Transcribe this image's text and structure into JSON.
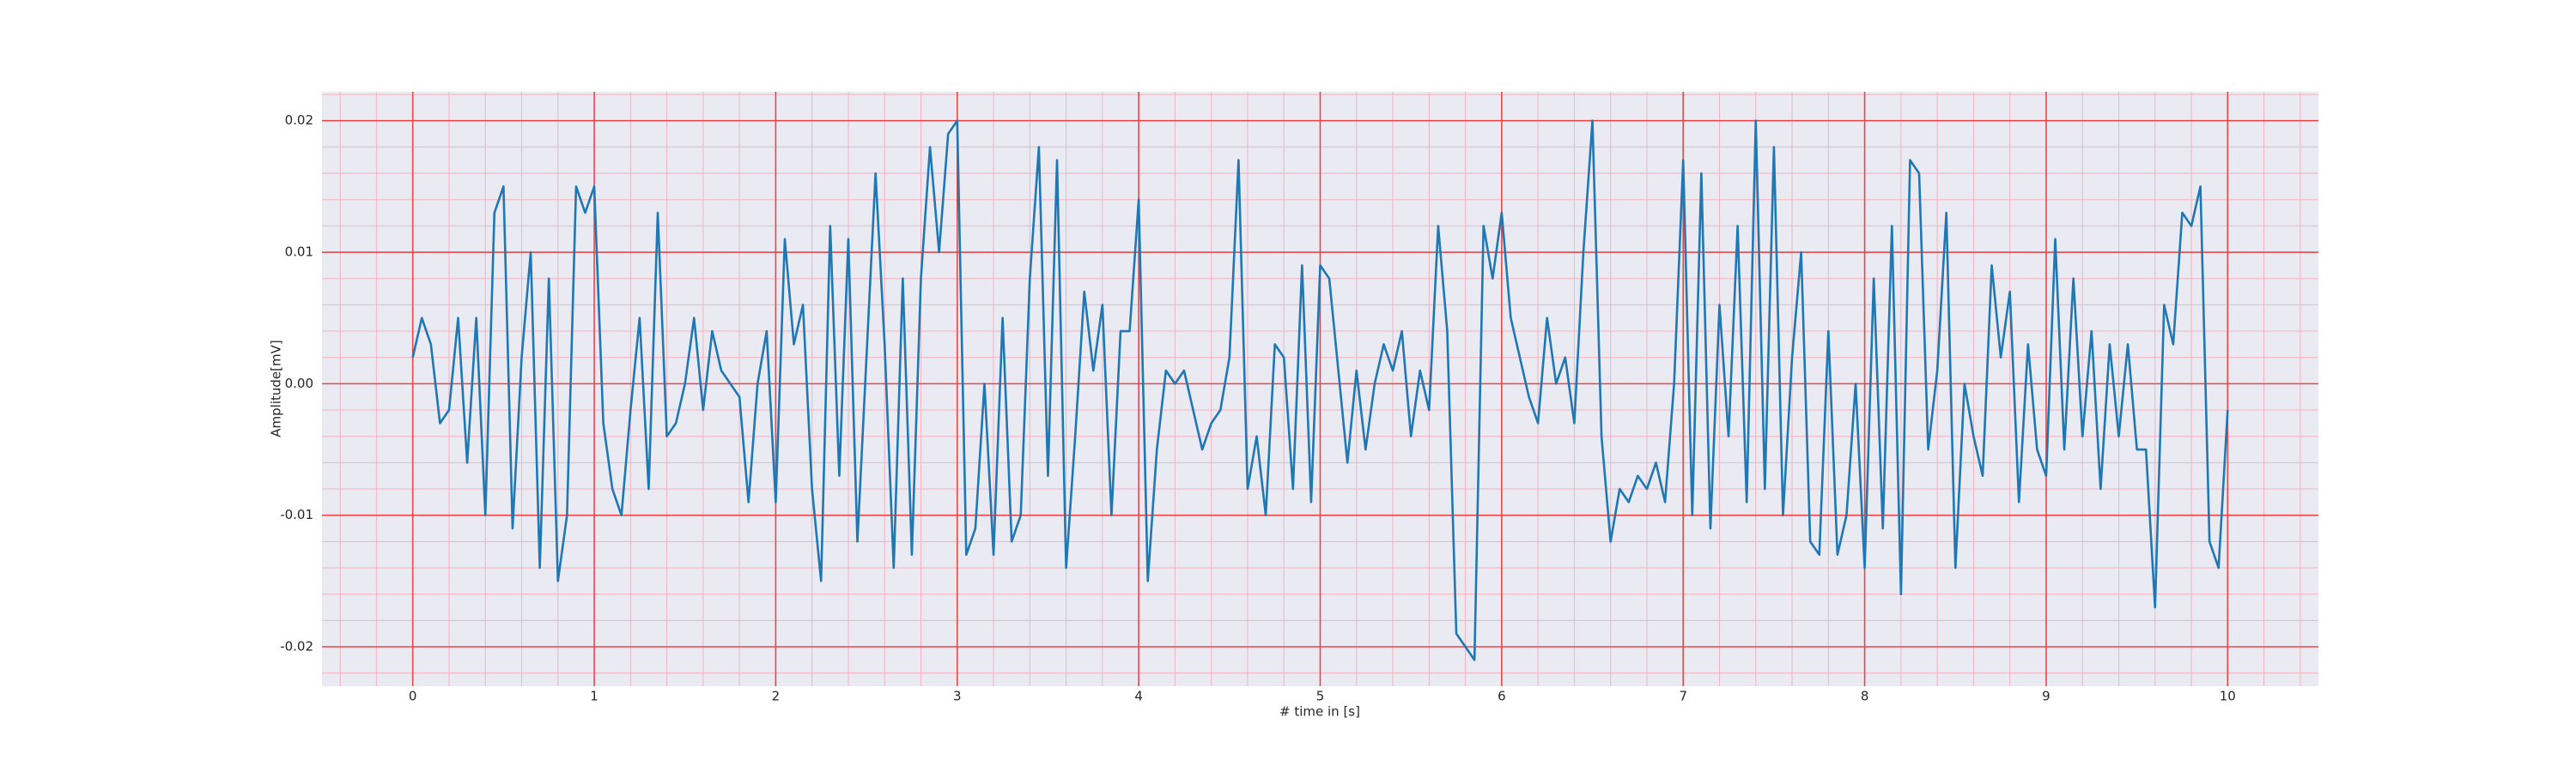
{
  "chart_data": {
    "type": "line",
    "xlabel": "# time in [s]",
    "ylabel": "Amplitude[mV]",
    "xlim": [
      -0.5,
      10.5
    ],
    "ylim": [
      -0.023,
      0.0222
    ],
    "xticks": [
      0,
      1,
      2,
      3,
      4,
      5,
      6,
      7,
      8,
      9,
      10
    ],
    "yticks": [
      -0.02,
      -0.01,
      {
        "value": 0,
        "label": "0.00"
      },
      0.01,
      0.02
    ],
    "grid": true,
    "grid_color": "#e8474a",
    "minor_grid": {
      "x_step": 0.2,
      "y_step": 0.002,
      "color": "#f3b3c0"
    },
    "background": "#eaeaf2",
    "x": [
      0,
      0.05,
      0.1,
      0.15,
      0.2,
      0.25,
      0.3,
      0.35,
      0.4,
      0.45,
      0.5,
      0.55,
      0.6,
      0.65,
      0.7,
      0.75,
      0.8,
      0.85,
      0.9,
      0.95,
      1,
      1.05,
      1.1,
      1.15,
      1.2,
      1.25,
      1.3,
      1.35,
      1.4,
      1.45,
      1.5,
      1.55,
      1.6,
      1.65,
      1.7,
      1.75,
      1.8,
      1.85,
      1.9,
      1.95,
      2,
      2.05,
      2.1,
      2.15,
      2.2,
      2.25,
      2.3,
      2.35,
      2.4,
      2.45,
      2.5,
      2.55,
      2.6,
      2.65,
      2.7,
      2.75,
      2.8,
      2.85,
      2.9,
      2.95,
      3,
      3.05,
      3.1,
      3.15,
      3.2,
      3.25,
      3.3,
      3.35,
      3.4,
      3.45,
      3.5,
      3.55,
      3.6,
      3.65,
      3.7,
      3.75,
      3.8,
      3.85,
      3.9,
      3.95,
      4,
      4.05,
      4.1,
      4.15,
      4.2,
      4.25,
      4.3,
      4.35,
      4.4,
      4.45,
      4.5,
      4.55,
      4.6,
      4.65,
      4.7,
      4.75,
      4.8,
      4.85,
      4.9,
      4.95,
      5,
      5.05,
      5.1,
      5.15,
      5.2,
      5.25,
      5.3,
      5.35,
      5.4,
      5.45,
      5.5,
      5.55,
      5.6,
      5.65,
      5.7,
      5.75,
      5.8,
      5.85,
      5.9,
      5.95,
      6,
      6.05,
      6.1,
      6.15,
      6.2,
      6.25,
      6.3,
      6.35,
      6.4,
      6.45,
      6.5,
      6.55,
      6.6,
      6.65,
      6.7,
      6.75,
      6.8,
      6.85,
      6.9,
      6.95,
      7,
      7.05,
      7.1,
      7.15,
      7.2,
      7.25,
      7.3,
      7.35,
      7.4,
      7.45,
      7.5,
      7.55,
      7.6,
      7.65,
      7.7,
      7.75,
      7.8,
      7.85,
      7.9,
      7.95,
      8,
      8.05,
      8.1,
      8.15,
      8.2,
      8.25,
      8.3,
      8.35,
      8.4,
      8.45,
      8.5,
      8.55,
      8.6,
      8.65,
      8.7,
      8.75,
      8.8,
      8.85,
      8.9,
      8.95,
      9,
      9.05,
      9.1,
      9.15,
      9.2,
      9.25,
      9.3,
      9.35,
      9.4,
      9.45,
      9.5,
      9.55,
      9.6,
      9.65,
      9.7,
      9.75,
      9.8,
      9.85,
      9.9,
      9.95,
      10
    ],
    "series": [
      {
        "color": "#1f77b4",
        "values": [
          0.002,
          0.005,
          0.003,
          -0.003,
          -0.002,
          0.005,
          -0.006,
          0.005,
          -0.01,
          0.013,
          0.015,
          -0.011,
          0.002,
          0.01,
          -0.014,
          0.008,
          -0.015,
          -0.01,
          0.015,
          0.013,
          0.015,
          -0.003,
          -0.008,
          -0.01,
          -0.002,
          0.005,
          -0.008,
          0.013,
          -0.004,
          -0.003,
          0.0,
          0.005,
          -0.002,
          0.004,
          0.001,
          0.0,
          -0.001,
          -0.009,
          0.0,
          0.004,
          -0.009,
          0.011,
          0.003,
          0.006,
          -0.008,
          -0.015,
          0.012,
          -0.007,
          0.011,
          -0.012,
          0.002,
          0.016,
          0.003,
          -0.014,
          0.008,
          -0.013,
          0.008,
          0.018,
          0.01,
          0.019,
          0.02,
          -0.013,
          -0.011,
          0.0,
          -0.013,
          0.005,
          -0.012,
          -0.01,
          0.008,
          0.018,
          -0.007,
          0.017,
          -0.014,
          -0.004,
          0.007,
          0.001,
          0.006,
          -0.01,
          0.004,
          0.004,
          0.014,
          -0.015,
          -0.005,
          0.001,
          0.0,
          0.001,
          -0.002,
          -0.005,
          -0.003,
          -0.002,
          0.002,
          0.017,
          -0.008,
          -0.004,
          -0.01,
          0.003,
          0.002,
          -0.008,
          0.009,
          -0.009,
          0.009,
          0.008,
          0.001,
          -0.006,
          0.001,
          -0.005,
          0.0,
          0.003,
          0.001,
          0.004,
          -0.004,
          0.001,
          -0.002,
          0.012,
          0.004,
          -0.019,
          -0.02,
          -0.021,
          0.012,
          0.008,
          0.013,
          0.005,
          0.002,
          -0.001,
          -0.003,
          0.005,
          0.0,
          0.002,
          -0.003,
          0.01,
          0.02,
          -0.004,
          -0.012,
          -0.008,
          -0.009,
          -0.007,
          -0.008,
          -0.006,
          -0.009,
          0.0,
          0.017,
          -0.01,
          0.016,
          -0.011,
          0.006,
          -0.004,
          0.012,
          -0.009,
          0.02,
          -0.008,
          0.018,
          -0.01,
          0.002,
          0.01,
          -0.012,
          -0.013,
          0.004,
          -0.013,
          -0.01,
          0.0,
          -0.014,
          0.008,
          -0.011,
          0.012,
          -0.016,
          0.017,
          0.016,
          -0.005,
          0.001,
          0.013,
          -0.014,
          0.0,
          -0.004,
          -0.007,
          0.009,
          0.002,
          0.007,
          -0.009,
          0.003,
          -0.005,
          -0.007,
          0.011,
          -0.005,
          0.008,
          -0.004,
          0.004,
          -0.008,
          0.003,
          -0.004,
          0.003,
          -0.005,
          -0.005,
          -0.017,
          0.006,
          0.003,
          0.013,
          0.012,
          0.015,
          -0.012,
          -0.014,
          -0.002
        ]
      }
    ]
  }
}
